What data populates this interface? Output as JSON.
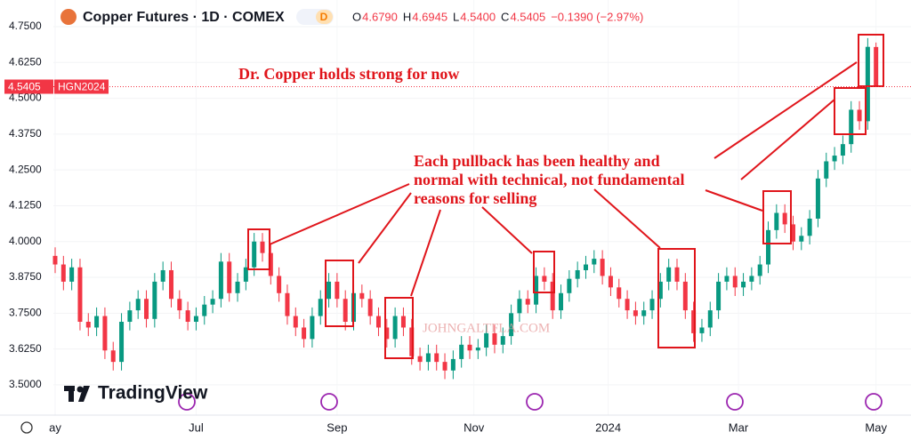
{
  "header": {
    "symbol_title": "Copper Futures · 1D · COMEX",
    "badge": "D",
    "ohlc": [
      {
        "key": "O",
        "value": "4.6790"
      },
      {
        "key": "H",
        "value": "4.6945"
      },
      {
        "key": "L",
        "value": "4.5400"
      },
      {
        "key": "C",
        "value": "4.5405"
      }
    ],
    "change": "−0.1390 (−2.97%)"
  },
  "price_tag": {
    "price": "4.5405",
    "symbol": "HGN2024"
  },
  "annotations": {
    "title": "Dr. Copper holds strong for now",
    "pullback": [
      "Each pullback has been healthy and",
      "normal with technical, not fundamental",
      "reasons for selling"
    ],
    "watermark": "JOHNGALTFLA.COM"
  },
  "logo": "TradingView",
  "chart_data": {
    "type": "candlestick",
    "categories": [
      null,
      null,
      null,
      null,
      null,
      null,
      null,
      null,
      null,
      null,
      null,
      null,
      null,
      null,
      null,
      null,
      null,
      null,
      null,
      null,
      null,
      null,
      null,
      null,
      null,
      null,
      null,
      null,
      null,
      null,
      null,
      null,
      null,
      null,
      null,
      null,
      null,
      null,
      null,
      null,
      null,
      null,
      null,
      null,
      null,
      null,
      null,
      null,
      null,
      null,
      null,
      null,
      null,
      null,
      null,
      null,
      null,
      null,
      null,
      null,
      null,
      null,
      null,
      null,
      null,
      null,
      null,
      null,
      null,
      null,
      null,
      null,
      null,
      null,
      null,
      null,
      null,
      null,
      null,
      null,
      null,
      null,
      null,
      null,
      null,
      null,
      null,
      null,
      null,
      null,
      null,
      null,
      null,
      null,
      null,
      null,
      null,
      null,
      null,
      null
    ],
    "open": [
      3.95,
      3.92,
      3.86,
      3.91,
      3.72,
      3.7,
      3.74,
      3.62,
      3.58,
      3.72,
      3.76,
      3.8,
      3.73,
      3.86,
      3.9,
      3.8,
      3.76,
      3.72,
      3.74,
      3.78,
      3.8,
      3.93,
      3.82,
      3.86,
      3.91,
      4.0,
      3.96,
      3.88,
      3.82,
      3.74,
      3.7,
      3.66,
      3.74,
      3.8,
      3.86,
      3.8,
      3.72,
      3.82,
      3.8,
      3.74,
      3.7,
      3.66,
      3.74,
      3.7,
      3.6,
      3.58,
      3.61,
      3.58,
      3.55,
      3.59,
      3.64,
      3.62,
      3.63,
      3.68,
      3.64,
      3.67,
      3.75,
      3.8,
      3.78,
      3.88,
      3.86,
      3.76,
      3.82,
      3.87,
      3.9,
      3.92,
      3.94,
      3.88,
      3.84,
      3.8,
      3.76,
      3.74,
      3.76,
      3.8,
      3.86,
      3.91,
      3.86,
      3.76,
      3.68,
      3.7,
      3.76,
      3.86,
      3.88,
      3.84,
      3.86,
      3.88,
      3.92,
      4.04,
      4.1,
      4.06,
      4.0,
      4.02,
      4.08,
      4.22,
      4.28,
      4.3,
      4.34,
      4.46,
      4.42,
      4.679
    ],
    "high": [
      3.98,
      3.95,
      3.94,
      3.94,
      3.75,
      3.77,
      3.77,
      3.65,
      3.75,
      3.79,
      3.83,
      3.83,
      3.89,
      3.93,
      3.93,
      3.83,
      3.79,
      3.77,
      3.81,
      3.83,
      3.96,
      3.96,
      3.89,
      3.94,
      4.03,
      4.03,
      3.99,
      3.91,
      3.85,
      3.77,
      3.73,
      3.77,
      3.83,
      3.89,
      3.89,
      3.83,
      3.85,
      3.85,
      3.83,
      3.77,
      3.73,
      3.77,
      3.77,
      3.73,
      3.63,
      3.64,
      3.64,
      3.61,
      3.62,
      3.67,
      3.67,
      3.66,
      3.71,
      3.71,
      3.7,
      3.78,
      3.83,
      3.83,
      3.91,
      3.91,
      3.89,
      3.85,
      3.9,
      3.93,
      3.95,
      3.97,
      3.97,
      3.91,
      3.87,
      3.83,
      3.79,
      3.79,
      3.83,
      3.89,
      3.94,
      3.94,
      3.89,
      3.79,
      3.73,
      3.79,
      3.89,
      3.91,
      3.91,
      3.89,
      3.91,
      3.95,
      4.07,
      4.13,
      4.13,
      4.09,
      4.05,
      4.11,
      4.25,
      4.31,
      4.33,
      4.37,
      4.49,
      4.49,
      4.71,
      4.6945
    ],
    "low": [
      3.89,
      3.83,
      3.83,
      3.69,
      3.67,
      3.67,
      3.59,
      3.55,
      3.55,
      3.69,
      3.73,
      3.7,
      3.7,
      3.83,
      3.77,
      3.73,
      3.69,
      3.69,
      3.71,
      3.75,
      3.77,
      3.79,
      3.79,
      3.83,
      3.88,
      3.93,
      3.85,
      3.79,
      3.71,
      3.67,
      3.63,
      3.63,
      3.71,
      3.77,
      3.77,
      3.69,
      3.69,
      3.77,
      3.71,
      3.67,
      3.63,
      3.63,
      3.67,
      3.57,
      3.55,
      3.55,
      3.55,
      3.52,
      3.52,
      3.56,
      3.59,
      3.59,
      3.6,
      3.61,
      3.61,
      3.64,
      3.72,
      3.75,
      3.75,
      3.83,
      3.73,
      3.73,
      3.79,
      3.84,
      3.87,
      3.89,
      3.85,
      3.81,
      3.77,
      3.73,
      3.71,
      3.71,
      3.73,
      3.77,
      3.83,
      3.83,
      3.73,
      3.65,
      3.65,
      3.67,
      3.73,
      3.83,
      3.81,
      3.81,
      3.83,
      3.85,
      3.89,
      4.01,
      4.03,
      3.97,
      3.97,
      3.99,
      4.05,
      4.19,
      4.25,
      4.27,
      4.31,
      4.39,
      4.39,
      4.54
    ],
    "close": [
      3.92,
      3.86,
      3.91,
      3.72,
      3.7,
      3.74,
      3.62,
      3.58,
      3.72,
      3.76,
      3.8,
      3.73,
      3.86,
      3.9,
      3.8,
      3.76,
      3.72,
      3.74,
      3.78,
      3.8,
      3.93,
      3.82,
      3.86,
      3.91,
      4.0,
      3.96,
      3.88,
      3.82,
      3.74,
      3.7,
      3.66,
      3.74,
      3.8,
      3.86,
      3.8,
      3.72,
      3.82,
      3.8,
      3.74,
      3.7,
      3.66,
      3.74,
      3.7,
      3.6,
      3.58,
      3.61,
      3.58,
      3.55,
      3.59,
      3.64,
      3.62,
      3.63,
      3.68,
      3.64,
      3.67,
      3.75,
      3.8,
      3.78,
      3.88,
      3.86,
      3.76,
      3.82,
      3.87,
      3.9,
      3.92,
      3.94,
      3.88,
      3.84,
      3.8,
      3.76,
      3.74,
      3.76,
      3.8,
      3.86,
      3.91,
      3.86,
      3.76,
      3.68,
      3.7,
      3.76,
      3.86,
      3.88,
      3.84,
      3.86,
      3.88,
      3.92,
      4.04,
      4.1,
      4.06,
      4.0,
      4.02,
      4.08,
      4.22,
      4.28,
      4.3,
      4.34,
      4.46,
      4.42,
      4.6795,
      4.5405
    ],
    "up_color": "#089981",
    "down_color": "#f23645",
    "ylim": [
      3.385,
      4.843
    ],
    "yticks": [
      {
        "value": 4.75,
        "label": "4.7500"
      },
      {
        "value": 4.625,
        "label": "4.6250"
      },
      {
        "value": 4.5,
        "label": "4.5000"
      },
      {
        "value": 4.375,
        "label": "4.3750"
      },
      {
        "value": 4.25,
        "label": "4.2500"
      },
      {
        "value": 4.125,
        "label": "4.1250"
      },
      {
        "value": 4,
        "label": "4.0000"
      },
      {
        "value": 3.875,
        "label": "3.8750"
      },
      {
        "value": 3.75,
        "label": "3.7500"
      },
      {
        "value": 3.625,
        "label": "3.6250"
      },
      {
        "value": 3.5,
        "label": "3.5000"
      }
    ],
    "xticks": [
      {
        "value": 0,
        "label": "ay"
      },
      {
        "value": 17,
        "label": "Jul"
      },
      {
        "value": 34,
        "label": "Sep"
      },
      {
        "value": 50.5,
        "label": "Nov"
      },
      {
        "value": 66.7,
        "label": "2024"
      },
      {
        "value": 82.4,
        "label": "Mar"
      },
      {
        "value": 99,
        "label": "May"
      }
    ],
    "grid": true
  }
}
